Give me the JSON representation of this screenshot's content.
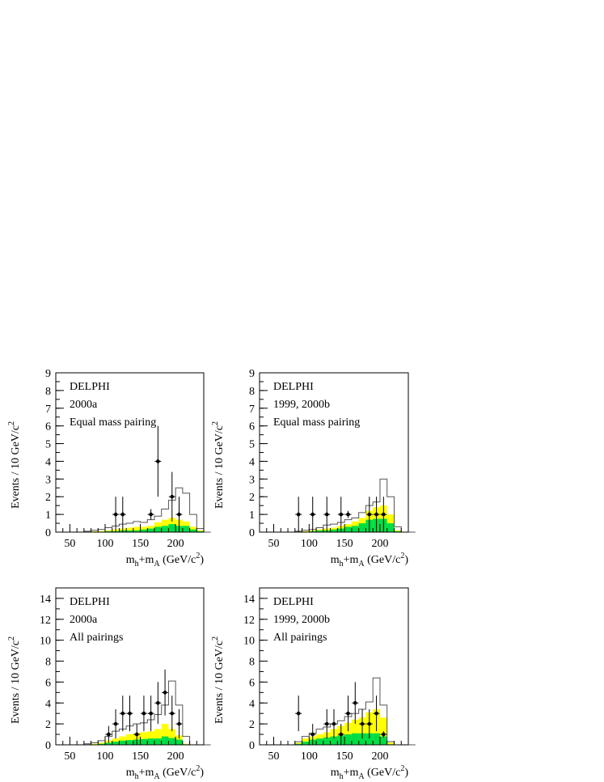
{
  "chart_data": [
    {
      "type": "histogram",
      "panel": "top-left",
      "texts": [
        "DELPHI",
        "2000a",
        "Equal mass pairing"
      ],
      "ylabel": "Events / 10 GeV/c",
      "ylabel_sup": "2",
      "xlabel_main": "m",
      "xlabel_sub1": "h",
      "xlabel_mid": "+m",
      "xlabel_sub2": "A",
      "xlabel_unit": " (GeV/c",
      "xlabel_sup": "2",
      "xlabel_close": ")",
      "xlim": [
        30,
        240
      ],
      "ylim": [
        0,
        9
      ],
      "xticks": [
        50,
        100,
        150,
        200
      ],
      "yticks": [
        0,
        1,
        2,
        3,
        4,
        5,
        6,
        7,
        8,
        9
      ],
      "bin_width": 10,
      "bins_start": 40,
      "total_background": [
        0,
        0,
        0,
        0.05,
        0.1,
        0.15,
        0.25,
        0.35,
        0.45,
        0.5,
        0.6,
        0.55,
        0.7,
        0.9,
        1.3,
        1.8,
        2.5,
        2.2,
        1.0,
        0.2,
        0
      ],
      "yellow_component": [
        0,
        0,
        0,
        0,
        0.05,
        0.05,
        0.1,
        0.15,
        0.2,
        0.25,
        0.3,
        0.3,
        0.35,
        0.55,
        0.7,
        0.8,
        0.7,
        0.6,
        0.3,
        0.1,
        0
      ],
      "green_component": [
        0,
        0,
        0,
        0,
        0,
        0,
        0.05,
        0.05,
        0.1,
        0.1,
        0.1,
        0.15,
        0.2,
        0.3,
        0.35,
        0.45,
        0.35,
        0.35,
        0.15,
        0.05,
        0
      ],
      "data": [
        {
          "x": 115,
          "y": 1,
          "err": 1.0
        },
        {
          "x": 125,
          "y": 1,
          "err": 1.0
        },
        {
          "x": 165,
          "y": 1,
          "err": 0.3
        },
        {
          "x": 175,
          "y": 4,
          "err": 2.0
        },
        {
          "x": 195,
          "y": 2,
          "err": 1.4
        },
        {
          "x": 205,
          "y": 1,
          "err": 1.0
        }
      ],
      "colors": {
        "yellow": "#ffff00",
        "green": "#00dd44",
        "line": "#555555",
        "frame": "#000000"
      }
    },
    {
      "type": "histogram",
      "panel": "top-right",
      "texts": [
        "DELPHI",
        "1999, 2000b",
        "Equal mass pairing"
      ],
      "ylabel": "Events / 10 GeV/c",
      "ylabel_sup": "2",
      "xlabel_main": "m",
      "xlabel_sub1": "h",
      "xlabel_mid": "+m",
      "xlabel_sub2": "A",
      "xlabel_unit": " (GeV/c",
      "xlabel_sup": "2",
      "xlabel_close": ")",
      "xlim": [
        30,
        240
      ],
      "ylim": [
        0,
        9
      ],
      "xticks": [
        50,
        100,
        150,
        200
      ],
      "yticks": [
        0,
        1,
        2,
        3,
        4,
        5,
        6,
        7,
        8,
        9
      ],
      "bin_width": 10,
      "bins_start": 40,
      "total_background": [
        0,
        0,
        0,
        0,
        0.05,
        0.1,
        0.15,
        0.25,
        0.4,
        0.45,
        0.55,
        0.7,
        0.8,
        1.1,
        1.5,
        1.7,
        3.0,
        2.0,
        0.3,
        0,
        0
      ],
      "yellow_component": [
        0,
        0,
        0,
        0,
        0,
        0.05,
        0.1,
        0.15,
        0.2,
        0.25,
        0.35,
        0.45,
        0.6,
        0.8,
        1.2,
        1.4,
        1.5,
        1.0,
        0.1,
        0,
        0
      ],
      "green_component": [
        0,
        0,
        0,
        0,
        0,
        0,
        0.05,
        0.1,
        0.1,
        0.15,
        0.2,
        0.3,
        0.35,
        0.5,
        0.7,
        0.75,
        0.75,
        0.5,
        0.05,
        0,
        0
      ],
      "data": [
        {
          "x": 85,
          "y": 1,
          "err": 1.0
        },
        {
          "x": 105,
          "y": 1,
          "err": 1.0
        },
        {
          "x": 125,
          "y": 1,
          "err": 1.0
        },
        {
          "x": 145,
          "y": 1,
          "err": 1.0
        },
        {
          "x": 155,
          "y": 1,
          "err": 0.2
        },
        {
          "x": 185,
          "y": 1,
          "err": 1.0
        },
        {
          "x": 195,
          "y": 1,
          "err": 1.0
        },
        {
          "x": 205,
          "y": 1,
          "err": 1.0
        }
      ],
      "colors": {
        "yellow": "#ffff00",
        "green": "#00dd44",
        "line": "#555555",
        "frame": "#000000"
      }
    },
    {
      "type": "histogram",
      "panel": "bottom-left",
      "texts": [
        "DELPHI",
        "2000a",
        "All pairings"
      ],
      "ylabel": "Events / 10 GeV/c",
      "ylabel_sup": "2",
      "xlabel_main": "m",
      "xlabel_sub1": "h",
      "xlabel_mid": "+m",
      "xlabel_sub2": "A",
      "xlabel_unit": " (GeV/c",
      "xlabel_sup": "2",
      "xlabel_close": ")",
      "xlim": [
        30,
        240
      ],
      "ylim": [
        0,
        15
      ],
      "xticks": [
        50,
        100,
        150,
        200
      ],
      "yticks": [
        0,
        2,
        4,
        6,
        8,
        10,
        12,
        14
      ],
      "bin_width": 10,
      "bins_start": 40,
      "total_background": [
        0,
        0,
        0,
        0.1,
        0.2,
        0.4,
        0.8,
        1.3,
        1.5,
        1.8,
        2.0,
        2.1,
        2.4,
        2.9,
        3.8,
        6.1,
        3.8,
        0.8,
        0,
        0,
        0
      ],
      "yellow_component": [
        0,
        0,
        0,
        0,
        0.1,
        0.2,
        0.4,
        0.6,
        0.8,
        1.0,
        1.1,
        1.2,
        1.3,
        1.5,
        2.0,
        1.5,
        0.9,
        0.1,
        0,
        0,
        0
      ],
      "green_component": [
        0,
        0,
        0,
        0,
        0,
        0.1,
        0.2,
        0.3,
        0.4,
        0.45,
        0.5,
        0.55,
        0.6,
        0.6,
        0.8,
        0.65,
        0.5,
        0.05,
        0,
        0,
        0
      ],
      "data": [
        {
          "x": 105,
          "y": 1,
          "err": 0.8
        },
        {
          "x": 115,
          "y": 2,
          "err": 1.4
        },
        {
          "x": 125,
          "y": 3,
          "err": 1.7
        },
        {
          "x": 135,
          "y": 3,
          "err": 1.7
        },
        {
          "x": 145,
          "y": 1,
          "err": 1.0
        },
        {
          "x": 155,
          "y": 3,
          "err": 1.7
        },
        {
          "x": 165,
          "y": 3,
          "err": 1.7
        },
        {
          "x": 175,
          "y": 4,
          "err": 2.0
        },
        {
          "x": 185,
          "y": 5,
          "err": 2.2
        },
        {
          "x": 195,
          "y": 3,
          "err": 1.7
        },
        {
          "x": 205,
          "y": 2,
          "err": 1.4
        }
      ],
      "colors": {
        "yellow": "#ffff00",
        "green": "#00dd44",
        "line": "#555555",
        "frame": "#000000"
      }
    },
    {
      "type": "histogram",
      "panel": "bottom-right",
      "texts": [
        "DELPHI",
        "1999, 2000b",
        "All pairings"
      ],
      "ylabel": "Events / 10 GeV/c",
      "ylabel_sup": "2",
      "xlabel_main": "m",
      "xlabel_sub1": "h",
      "xlabel_mid": "+m",
      "xlabel_sub2": "A",
      "xlabel_unit": " (GeV/c",
      "xlabel_sup": "2",
      "xlabel_close": ")",
      "xlim": [
        30,
        240
      ],
      "ylim": [
        0,
        15
      ],
      "xticks": [
        50,
        100,
        150,
        200
      ],
      "yticks": [
        0,
        2,
        4,
        6,
        8,
        10,
        12,
        14
      ],
      "bin_width": 10,
      "bins_start": 40,
      "total_background": [
        0,
        0,
        0,
        0,
        0.3,
        0.8,
        1.1,
        1.5,
        1.7,
        2.0,
        2.3,
        2.7,
        3.0,
        3.4,
        4.1,
        6.4,
        3.8,
        0.3,
        0,
        0,
        0
      ],
      "yellow_component": [
        0,
        0,
        0,
        0,
        0.2,
        0.6,
        0.8,
        1.0,
        1.2,
        1.5,
        1.8,
        2.1,
        2.4,
        2.6,
        3.1,
        3.4,
        2.6,
        0.2,
        0,
        0,
        0
      ],
      "green_component": [
        0,
        0,
        0,
        0,
        0.1,
        0.3,
        0.5,
        0.6,
        0.7,
        0.8,
        0.9,
        1.0,
        1.1,
        1.1,
        1.1,
        1.1,
        0.8,
        0.05,
        0,
        0,
        0
      ],
      "data": [
        {
          "x": 85,
          "y": 3,
          "err": 1.7
        },
        {
          "x": 105,
          "y": 1,
          "err": 1.0
        },
        {
          "x": 125,
          "y": 2,
          "err": 1.4
        },
        {
          "x": 135,
          "y": 2,
          "err": 1.4
        },
        {
          "x": 145,
          "y": 1,
          "err": 1.0
        },
        {
          "x": 155,
          "y": 3,
          "err": 1.7
        },
        {
          "x": 165,
          "y": 4,
          "err": 2.0
        },
        {
          "x": 175,
          "y": 2,
          "err": 1.4
        },
        {
          "x": 185,
          "y": 2,
          "err": 1.4
        },
        {
          "x": 195,
          "y": 3,
          "err": 1.7
        },
        {
          "x": 205,
          "y": 1,
          "err": 0.3
        }
      ],
      "colors": {
        "yellow": "#ffff00",
        "green": "#00dd44",
        "line": "#555555",
        "frame": "#000000"
      }
    }
  ]
}
